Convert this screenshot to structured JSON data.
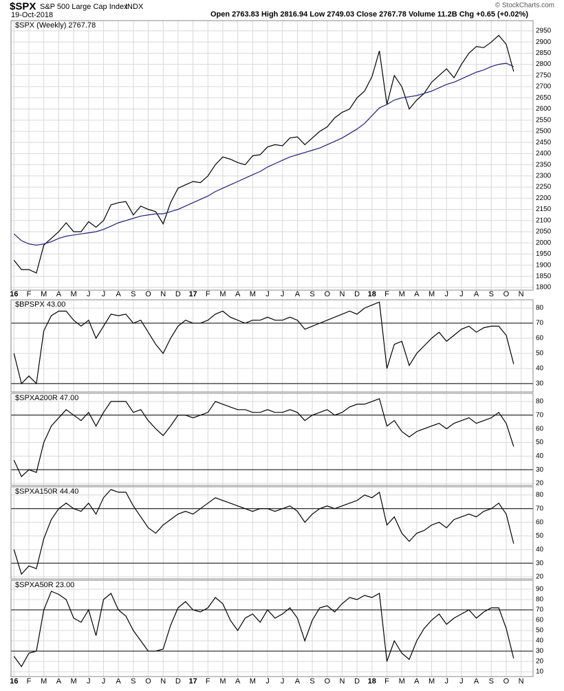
{
  "chart_data": [
    {
      "type": "line",
      "title": "$SPX",
      "subtitle": "S&P 500 Large Cap Index",
      "exchange": "INDX",
      "date": "19-Oct-2018",
      "quote": "Open 2763.83 High 2816.94 Low 2749.03 Close 2767.78 Volume 11.2B Chg +0.65 (+0.02%)",
      "credit": "© StockCharts.com",
      "grid": true,
      "x": [
        0,
        0.5,
        1,
        1.5,
        2,
        2.5,
        3,
        3.5,
        4,
        4.5,
        5,
        5.5,
        6,
        6.5,
        7,
        7.5,
        8,
        8.5,
        9,
        9.5,
        10,
        10.5,
        11,
        11.5,
        12,
        12.5,
        13,
        13.5,
        14,
        14.5,
        15,
        15.5,
        16,
        16.5,
        17,
        17.5,
        18,
        18.5,
        19,
        19.5,
        20,
        20.5,
        21,
        21.5,
        22,
        22.5,
        23,
        23.5,
        24,
        24.5,
        25,
        25.5,
        26,
        26.5,
        27,
        27.5,
        28,
        28.5,
        29,
        29.5,
        30,
        30.5,
        31,
        31.5,
        32,
        32.5,
        33,
        33.5
      ],
      "xlim": [
        -0.2,
        34.8
      ],
      "xticks": [
        {
          "value": 0,
          "label": "16"
        },
        {
          "value": 1,
          "label": "F"
        },
        {
          "value": 2,
          "label": "M"
        },
        {
          "value": 3,
          "label": "A"
        },
        {
          "value": 4,
          "label": "M"
        },
        {
          "value": 5,
          "label": "J"
        },
        {
          "value": 6,
          "label": "J"
        },
        {
          "value": 7,
          "label": "A"
        },
        {
          "value": 8,
          "label": "S"
        },
        {
          "value": 9,
          "label": "O"
        },
        {
          "value": 10,
          "label": "N"
        },
        {
          "value": 11,
          "label": "D"
        },
        {
          "value": 12,
          "label": "17"
        },
        {
          "value": 13,
          "label": "F"
        },
        {
          "value": 14,
          "label": "M"
        },
        {
          "value": 15,
          "label": "A"
        },
        {
          "value": 16,
          "label": "M"
        },
        {
          "value": 17,
          "label": "J"
        },
        {
          "value": 18,
          "label": "J"
        },
        {
          "value": 19,
          "label": "A"
        },
        {
          "value": 20,
          "label": "S"
        },
        {
          "value": 21,
          "label": "O"
        },
        {
          "value": 22,
          "label": "N"
        },
        {
          "value": 23,
          "label": "D"
        },
        {
          "value": 24,
          "label": "18"
        },
        {
          "value": 25,
          "label": "F"
        },
        {
          "value": 26,
          "label": "M"
        },
        {
          "value": 27,
          "label": "A"
        },
        {
          "value": 28,
          "label": "M"
        },
        {
          "value": 29,
          "label": "J"
        },
        {
          "value": 30,
          "label": "J"
        },
        {
          "value": 31,
          "label": "A"
        },
        {
          "value": 32,
          "label": "S"
        },
        {
          "value": 33,
          "label": "O"
        },
        {
          "value": 34,
          "label": "N"
        }
      ],
      "ylim": [
        1788,
        2996
      ],
      "yticks": [
        1800,
        1850,
        1900,
        1950,
        2000,
        2050,
        2100,
        2150,
        2200,
        2250,
        2300,
        2350,
        2400,
        2450,
        2500,
        2550,
        2600,
        2650,
        2700,
        2750,
        2800,
        2850,
        2900,
        2950
      ],
      "series": [
        {
          "name": "$SPX (Weekly) 2767.78",
          "color": "#000000",
          "values": [
            1922,
            1880,
            1880,
            1865,
            1990,
            2020,
            2050,
            2090,
            2050,
            2050,
            2095,
            2070,
            2100,
            2170,
            2180,
            2185,
            2125,
            2165,
            2150,
            2140,
            2085,
            2180,
            2245,
            2260,
            2275,
            2270,
            2300,
            2350,
            2385,
            2375,
            2360,
            2350,
            2390,
            2395,
            2430,
            2440,
            2435,
            2470,
            2475,
            2440,
            2470,
            2500,
            2520,
            2560,
            2585,
            2600,
            2650,
            2680,
            2745,
            2860,
            2620,
            2750,
            2700,
            2600,
            2640,
            2670,
            2720,
            2750,
            2780,
            2740,
            2800,
            2850,
            2880,
            2875,
            2900,
            2930,
            2890,
            2768
          ]
        },
        {
          "color": "#1f1f7a",
          "values": [
            2040,
            2010,
            1995,
            1990,
            1995,
            2005,
            2020,
            2030,
            2035,
            2040,
            2045,
            2050,
            2060,
            2075,
            2090,
            2100,
            2110,
            2120,
            2125,
            2130,
            2130,
            2140,
            2150,
            2165,
            2180,
            2195,
            2210,
            2230,
            2245,
            2260,
            2275,
            2290,
            2305,
            2320,
            2340,
            2355,
            2370,
            2385,
            2395,
            2405,
            2415,
            2425,
            2440,
            2455,
            2470,
            2490,
            2510,
            2535,
            2570,
            2605,
            2620,
            2640,
            2650,
            2655,
            2660,
            2670,
            2680,
            2695,
            2710,
            2720,
            2735,
            2750,
            2765,
            2775,
            2790,
            2800,
            2805,
            2790
          ]
        }
      ]
    },
    {
      "type": "line",
      "grid": true,
      "xlim": [
        -0.2,
        34.8
      ],
      "ylim": [
        24.5,
        85.5
      ],
      "yticks": [
        30,
        40,
        50,
        60,
        70,
        80
      ],
      "hlines": [
        30,
        70
      ],
      "series": [
        {
          "name": "$BPSPX 43.00",
          "color": "#000000",
          "values": [
            50,
            30,
            35,
            30,
            65,
            75,
            78,
            78,
            72,
            68,
            72,
            60,
            68,
            76,
            75,
            76,
            70,
            72,
            64,
            56,
            50,
            60,
            68,
            72,
            70,
            70,
            72,
            76,
            78,
            74,
            72,
            70,
            72,
            72,
            74,
            72,
            72,
            74,
            72,
            66,
            68,
            70,
            72,
            74,
            76,
            78,
            76,
            80,
            82,
            84,
            40,
            56,
            58,
            42,
            50,
            55,
            60,
            64,
            58,
            62,
            66,
            68,
            64,
            67,
            68,
            68,
            62,
            43
          ]
        }
      ]
    },
    {
      "type": "line",
      "grid": true,
      "xlim": [
        -0.2,
        34.8
      ],
      "ylim": [
        18.5,
        86
      ],
      "yticks": [
        20,
        30,
        40,
        50,
        60,
        70,
        80
      ],
      "hlines": [
        30,
        70
      ],
      "series": [
        {
          "name": "$SPXA200R 47.00",
          "color": "#000000",
          "values": [
            37,
            25,
            30,
            28,
            50,
            62,
            68,
            74,
            70,
            66,
            72,
            62,
            72,
            80,
            80,
            80,
            72,
            74,
            66,
            60,
            55,
            62,
            70,
            70,
            68,
            70,
            72,
            80,
            78,
            76,
            74,
            74,
            72,
            72,
            74,
            72,
            72,
            74,
            72,
            66,
            70,
            72,
            74,
            70,
            72,
            76,
            78,
            78,
            80,
            82,
            62,
            66,
            58,
            54,
            58,
            60,
            62,
            64,
            60,
            64,
            66,
            68,
            64,
            66,
            68,
            72,
            64,
            47
          ]
        }
      ]
    },
    {
      "type": "line",
      "grid": true,
      "xlim": [
        -0.2,
        34.8
      ],
      "ylim": [
        18.5,
        86
      ],
      "yticks": [
        20,
        30,
        40,
        50,
        60,
        70,
        80
      ],
      "hlines": [
        30,
        70
      ],
      "series": [
        {
          "name": "$SPXA150R 44.40",
          "color": "#000000",
          "values": [
            40,
            22,
            28,
            26,
            48,
            62,
            70,
            74,
            70,
            68,
            74,
            66,
            78,
            84,
            82,
            82,
            72,
            64,
            56,
            52,
            58,
            62,
            66,
            68,
            66,
            70,
            74,
            78,
            76,
            74,
            72,
            70,
            68,
            70,
            70,
            68,
            70,
            72,
            68,
            60,
            66,
            70,
            72,
            70,
            72,
            74,
            76,
            80,
            78,
            82,
            58,
            64,
            52,
            46,
            52,
            54,
            58,
            60,
            56,
            62,
            64,
            66,
            64,
            68,
            70,
            74,
            66,
            44.4
          ]
        }
      ]
    },
    {
      "type": "line",
      "grid": true,
      "xlim": [
        -0.2,
        34.8
      ],
      "ylim": [
        5.3,
        98.7
      ],
      "yticks": [
        10,
        20,
        30,
        40,
        50,
        60,
        70,
        80,
        90
      ],
      "hlines": [
        30,
        70
      ],
      "xticks": [
        {
          "value": 0,
          "label": "16"
        },
        {
          "value": 1,
          "label": "F"
        },
        {
          "value": 2,
          "label": "M"
        },
        {
          "value": 3,
          "label": "A"
        },
        {
          "value": 4,
          "label": "M"
        },
        {
          "value": 5,
          "label": "J"
        },
        {
          "value": 6,
          "label": "J"
        },
        {
          "value": 7,
          "label": "A"
        },
        {
          "value": 8,
          "label": "S"
        },
        {
          "value": 9,
          "label": "O"
        },
        {
          "value": 10,
          "label": "N"
        },
        {
          "value": 11,
          "label": "D"
        },
        {
          "value": 12,
          "label": "17"
        },
        {
          "value": 13,
          "label": "F"
        },
        {
          "value": 14,
          "label": "M"
        },
        {
          "value": 15,
          "label": "A"
        },
        {
          "value": 16,
          "label": "M"
        },
        {
          "value": 17,
          "label": "J"
        },
        {
          "value": 18,
          "label": "J"
        },
        {
          "value": 19,
          "label": "A"
        },
        {
          "value": 20,
          "label": "S"
        },
        {
          "value": 21,
          "label": "O"
        },
        {
          "value": 22,
          "label": "N"
        },
        {
          "value": 23,
          "label": "D"
        },
        {
          "value": 24,
          "label": "18"
        },
        {
          "value": 25,
          "label": "F"
        },
        {
          "value": 26,
          "label": "M"
        },
        {
          "value": 27,
          "label": "A"
        },
        {
          "value": 28,
          "label": "M"
        },
        {
          "value": 29,
          "label": "J"
        },
        {
          "value": 30,
          "label": "J"
        },
        {
          "value": 31,
          "label": "A"
        },
        {
          "value": 32,
          "label": "S"
        },
        {
          "value": 33,
          "label": "O"
        },
        {
          "value": 34,
          "label": "N"
        }
      ],
      "series": [
        {
          "name": "$SPXA50R 23.00",
          "color": "#000000",
          "values": [
            25,
            15,
            28,
            30,
            70,
            88,
            85,
            80,
            62,
            58,
            70,
            45,
            80,
            86,
            70,
            64,
            50,
            40,
            30,
            30,
            32,
            55,
            72,
            78,
            70,
            68,
            72,
            82,
            76,
            60,
            50,
            62,
            66,
            58,
            70,
            62,
            66,
            72,
            62,
            40,
            60,
            72,
            74,
            68,
            76,
            82,
            80,
            84,
            82,
            86,
            20,
            40,
            28,
            22,
            40,
            52,
            60,
            66,
            56,
            62,
            66,
            70,
            62,
            68,
            72,
            72,
            52,
            23
          ]
        }
      ]
    }
  ]
}
